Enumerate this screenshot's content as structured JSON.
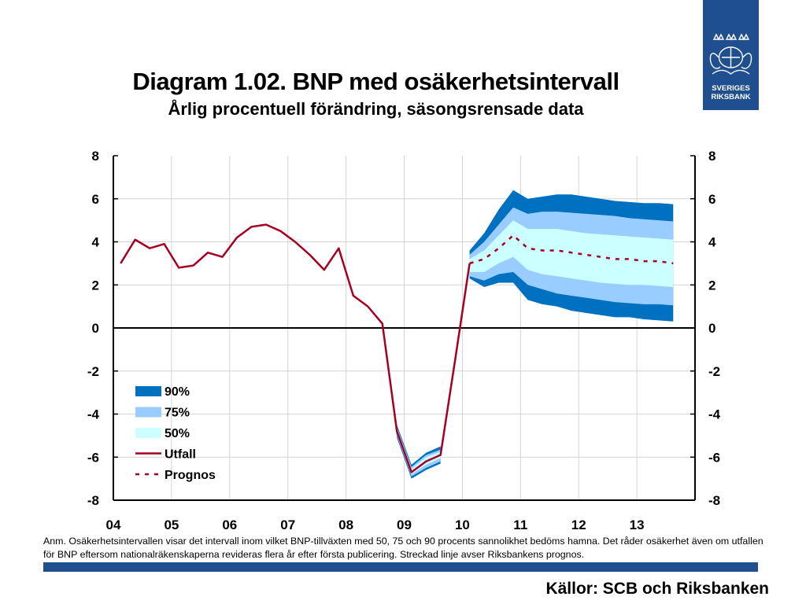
{
  "title": "Diagram 1.02. BNP med osäkerhetsintervall",
  "subtitle": "Årlig procentuell förändring, säsongsrensade data",
  "logo": {
    "line1": "SVERIGES",
    "line2": "RIKSBANK"
  },
  "note": "Anm. Osäkerhetsintervallen visar det intervall inom vilket BNP-tillväxten med 50, 75 och 90 procents sannolikhet bedöms hamna. Det råder osäkerhet även om utfallen för BNP eftersom nationalräkenskaperna revideras flera år efter första publicering. Streckad linje avser Riksbankens prognos.",
  "source": "Källor: SCB och Riksbanken",
  "colors": {
    "band90": "#0070c0",
    "band75": "#99ccff",
    "band50": "#ccffff",
    "line": "#a50021",
    "brand": "#1f4f8f"
  },
  "chart_data": {
    "type": "line",
    "title": "Diagram 1.02. BNP med osäkerhetsintervall",
    "subtitle": "Årlig procentuell förändring, säsongsrensade data",
    "x_tick_labels": [
      "04",
      "05",
      "06",
      "07",
      "08",
      "09",
      "10",
      "11",
      "12",
      "13"
    ],
    "xlim": [
      2004.0,
      2014.0
    ],
    "ylim": [
      -8,
      8
    ],
    "y_ticks": [
      -8,
      -6,
      -4,
      -2,
      0,
      2,
      4,
      6,
      8
    ],
    "y_tick_labels": [
      "-8",
      "-6",
      "-4",
      "-2",
      "0",
      "2",
      "4",
      "6",
      "8"
    ],
    "grid": true,
    "legend": {
      "position": "lower-left",
      "entries": [
        {
          "label": "90%",
          "kind": "band",
          "color": "#0070c0"
        },
        {
          "label": "75%",
          "kind": "band",
          "color": "#99ccff"
        },
        {
          "label": "50%",
          "kind": "band",
          "color": "#ccffff"
        },
        {
          "label": "Utfall",
          "kind": "line",
          "color": "#a50021"
        },
        {
          "label": "Prognos",
          "kind": "dashed",
          "color": "#a50021"
        }
      ]
    },
    "series": [
      {
        "name": "Utfall",
        "x": [
          2004.125,
          2004.375,
          2004.625,
          2004.875,
          2005.125,
          2005.375,
          2005.625,
          2005.875,
          2006.125,
          2006.375,
          2006.625,
          2006.875,
          2007.125,
          2007.375,
          2007.625,
          2007.875,
          2008.125,
          2008.375,
          2008.625,
          2008.875,
          2009.125,
          2009.375,
          2009.625,
          2009.875,
          2010.125
        ],
        "values": [
          3.0,
          4.1,
          3.7,
          3.9,
          2.8,
          2.9,
          3.5,
          3.3,
          4.2,
          4.7,
          4.8,
          4.5,
          4.0,
          3.4,
          2.7,
          3.7,
          1.5,
          1.0,
          0.2,
          -4.8,
          -6.7,
          -6.2,
          -5.9,
          -1.5,
          3.0
        ]
      },
      {
        "name": "Prognos",
        "x": [
          2010.125,
          2010.375,
          2010.625,
          2010.875,
          2011.125,
          2011.375,
          2011.625,
          2011.875,
          2012.125,
          2012.375,
          2012.625,
          2012.875,
          2013.125,
          2013.375,
          2013.625
        ],
        "values": [
          3.0,
          3.2,
          3.7,
          4.3,
          3.7,
          3.6,
          3.6,
          3.5,
          3.4,
          3.3,
          3.2,
          3.2,
          3.1,
          3.1,
          3.0
        ]
      }
    ],
    "bands": {
      "x_past": [
        2008.625,
        2008.875,
        2009.125,
        2009.375,
        2009.625
      ],
      "past": {
        "lo90": [
          0.05,
          -5.1,
          -7.0,
          -6.6,
          -6.3
        ],
        "lo75": [
          0.1,
          -5.0,
          -6.9,
          -6.5,
          -6.2
        ],
        "lo50": [
          0.15,
          -4.9,
          -6.8,
          -6.35,
          -6.05
        ],
        "hi50": [
          0.25,
          -4.7,
          -6.55,
          -6.0,
          -5.75
        ],
        "hi75": [
          0.3,
          -4.6,
          -6.45,
          -5.9,
          -5.65
        ],
        "hi90": [
          0.35,
          -4.5,
          -6.35,
          -5.8,
          -5.5
        ]
      },
      "x": [
        2010.125,
        2010.375,
        2010.625,
        2010.875,
        2011.125,
        2011.375,
        2011.625,
        2011.875,
        2012.125,
        2012.375,
        2012.625,
        2012.875,
        2013.125,
        2013.375,
        2013.625
      ],
      "lo90": [
        2.3,
        1.9,
        2.1,
        2.1,
        1.3,
        1.1,
        1.0,
        0.8,
        0.7,
        0.6,
        0.5,
        0.5,
        0.4,
        0.35,
        0.3
      ],
      "lo75": [
        2.4,
        2.2,
        2.5,
        2.6,
        2.0,
        1.8,
        1.6,
        1.5,
        1.4,
        1.3,
        1.2,
        1.15,
        1.1,
        1.1,
        1.05
      ],
      "lo50": [
        2.6,
        2.6,
        3.0,
        3.3,
        2.7,
        2.5,
        2.4,
        2.3,
        2.2,
        2.1,
        2.05,
        2.0,
        2.0,
        1.95,
        1.9
      ],
      "hi50": [
        3.2,
        3.6,
        4.3,
        5.0,
        4.6,
        4.6,
        4.6,
        4.5,
        4.4,
        4.35,
        4.3,
        4.25,
        4.2,
        4.15,
        4.1
      ],
      "hi75": [
        3.4,
        4.0,
        4.8,
        5.6,
        5.3,
        5.4,
        5.4,
        5.35,
        5.3,
        5.25,
        5.2,
        5.1,
        5.05,
        5.0,
        4.95
      ],
      "hi90": [
        3.6,
        4.4,
        5.5,
        6.4,
        6.0,
        6.1,
        6.2,
        6.2,
        6.1,
        6.0,
        5.9,
        5.85,
        5.8,
        5.8,
        5.75
      ]
    }
  }
}
